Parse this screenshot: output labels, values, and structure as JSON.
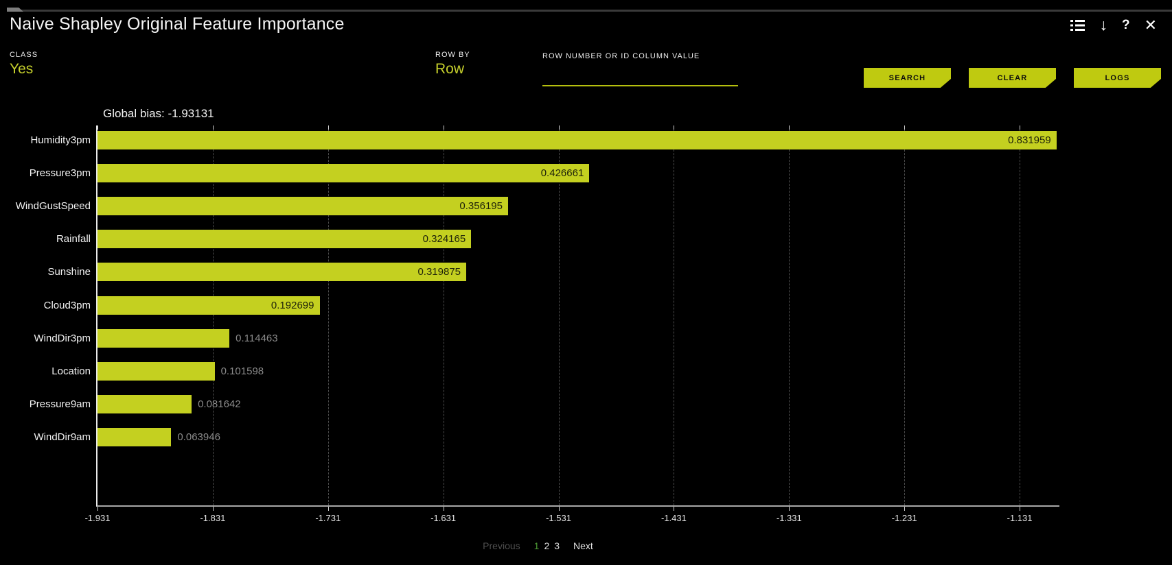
{
  "window": {
    "title": "Naive Shapley Original Feature Importance"
  },
  "icons": {
    "filter_list": "filter-list",
    "download": "↓",
    "help": "?",
    "close": "✕"
  },
  "controls": {
    "class_label": "CLASS",
    "class_value": "Yes",
    "row_by_label": "ROW BY",
    "row_by_value": "Row",
    "row_input_label": "ROW NUMBER OR ID COLUMN VALUE",
    "row_input_value": "",
    "buttons": [
      {
        "label": "SEARCH"
      },
      {
        "label": "CLEAR"
      },
      {
        "label": "LOGS"
      }
    ]
  },
  "chart_data": {
    "type": "bar",
    "orientation": "horizontal",
    "title": "Global bias: -1.93131",
    "global_bias": -1.93131,
    "categories": [
      "Humidity3pm",
      "Pressure3pm",
      "WindGustSpeed",
      "Rainfall",
      "Sunshine",
      "Cloud3pm",
      "WindDir3pm",
      "Location",
      "Pressure9am",
      "WindDir9am"
    ],
    "values": [
      0.831959,
      0.426661,
      0.356195,
      0.324165,
      0.319875,
      0.192699,
      0.114463,
      0.101598,
      0.081642,
      0.063946
    ],
    "value_labels": [
      "0.831959",
      "0.426661",
      "0.356195",
      "0.324165",
      "0.319875",
      "0.192699",
      "0.114463",
      "0.101598",
      "0.081642",
      "0.063946"
    ],
    "x_ticks": [
      -1.931,
      -1.831,
      -1.731,
      -1.631,
      -1.531,
      -1.431,
      -1.331,
      -1.231,
      -1.131
    ],
    "x_tick_labels": [
      "-1.931",
      "-1.831",
      "-1.731",
      "-1.631",
      "-1.531",
      "-1.431",
      "-1.331",
      "-1.231",
      "-1.131"
    ],
    "xlim": [
      -1.931,
      -1.0965
    ],
    "grid": "dashed-vertical",
    "bar_color": "#c4d020",
    "legend": "none"
  },
  "pagination": {
    "previous": "Previous",
    "pages": [
      "1",
      "2",
      "3"
    ],
    "active_page": "1",
    "next": "Next"
  },
  "colors": {
    "background": "#000000",
    "accent": "#bfca10",
    "bar_fill": "#c4d020",
    "active_page_green": "#4f9e35",
    "muted_value_text": "#8a8a8a"
  }
}
